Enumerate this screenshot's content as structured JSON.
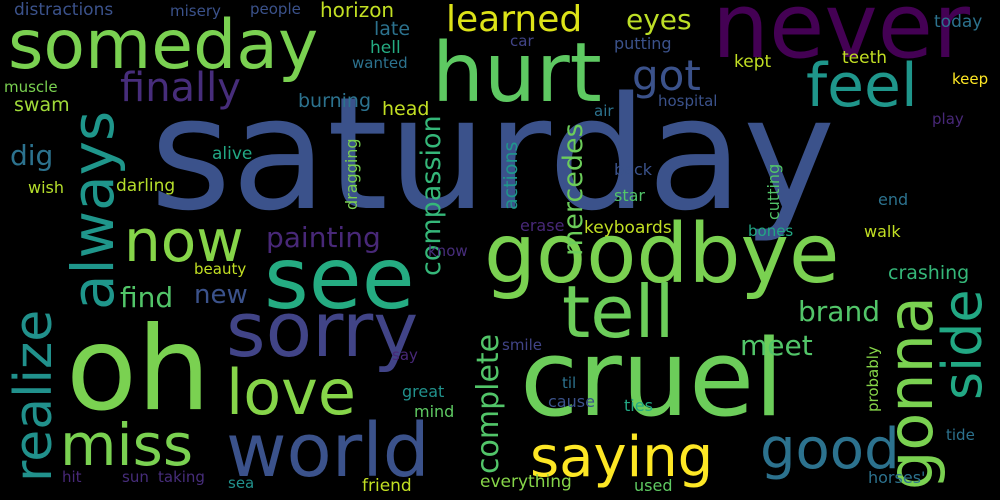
{
  "words": [
    {
      "text": "saturday",
      "color": "#3b528b"
    },
    {
      "text": "never",
      "color": "#440154"
    },
    {
      "text": "someday",
      "color": "#7ad151"
    },
    {
      "text": "hurt",
      "color": "#5ec962"
    },
    {
      "text": "feel",
      "color": "#1f968b"
    },
    {
      "text": "got",
      "color": "#3b528b"
    },
    {
      "text": "learned",
      "color": "#dde318"
    },
    {
      "text": "eyes",
      "color": "#bddf26"
    },
    {
      "text": "finally",
      "color": "#472d7b"
    },
    {
      "text": "always",
      "color": "#1f968b"
    },
    {
      "text": "now",
      "color": "#86d549"
    },
    {
      "text": "realize",
      "color": "#21918c"
    },
    {
      "text": "see",
      "color": "#25ac82"
    },
    {
      "text": "goodbye",
      "color": "#7ad151"
    },
    {
      "text": "sorry",
      "color": "#414487"
    },
    {
      "text": "tell",
      "color": "#6ccd5a"
    },
    {
      "text": "oh",
      "color": "#7ad151"
    },
    {
      "text": "cruel",
      "color": "#6ccd5a"
    },
    {
      "text": "love",
      "color": "#86d549"
    },
    {
      "text": "miss",
      "color": "#7ad151"
    },
    {
      "text": "world",
      "color": "#3b528b"
    },
    {
      "text": "saying",
      "color": "#fde725"
    },
    {
      "text": "good",
      "color": "#2c728e"
    },
    {
      "text": "gonna",
      "color": "#7ad151"
    },
    {
      "text": "side",
      "color": "#22a884"
    },
    {
      "text": "mercedes",
      "color": "#6ccd5a"
    },
    {
      "text": "complete",
      "color": "#52c569"
    },
    {
      "text": "compassion",
      "color": "#35b779"
    },
    {
      "text": "actions",
      "color": "#1f968b"
    },
    {
      "text": "painting",
      "color": "#482878"
    },
    {
      "text": "dig",
      "color": "#2c728e"
    },
    {
      "text": "find",
      "color": "#52c569"
    },
    {
      "text": "new",
      "color": "#3b528b"
    },
    {
      "text": "brand",
      "color": "#52c569"
    },
    {
      "text": "meet",
      "color": "#52c569"
    },
    {
      "text": "crashing",
      "color": "#35b779"
    },
    {
      "text": "keyboards",
      "color": "#c2df23"
    },
    {
      "text": "horizon",
      "color": "#c2df23"
    },
    {
      "text": "burning",
      "color": "#2c728e"
    },
    {
      "text": "head",
      "color": "#c2df23"
    },
    {
      "text": "late",
      "color": "#2c728e"
    },
    {
      "text": "hell",
      "color": "#25ac82"
    },
    {
      "text": "wanted",
      "color": "#2c728e"
    },
    {
      "text": "car",
      "color": "#414487"
    },
    {
      "text": "putting",
      "color": "#3b528b"
    },
    {
      "text": "kept",
      "color": "#c2df23"
    },
    {
      "text": "teeth",
      "color": "#c2df23"
    },
    {
      "text": "today",
      "color": "#2c728e"
    },
    {
      "text": "keep",
      "color": "#fde725"
    },
    {
      "text": "hospital",
      "color": "#3b528b"
    },
    {
      "text": "air",
      "color": "#2c728e"
    },
    {
      "text": "play",
      "color": "#482878"
    },
    {
      "text": "distractions",
      "color": "#3b528b"
    },
    {
      "text": "misery",
      "color": "#3b528b"
    },
    {
      "text": "people",
      "color": "#3b528b"
    },
    {
      "text": "muscle",
      "color": "#7ad151"
    },
    {
      "text": "swam",
      "color": "#a0da39"
    },
    {
      "text": "wish",
      "color": "#b5de2b"
    },
    {
      "text": "darling",
      "color": "#b5de2b"
    },
    {
      "text": "alive",
      "color": "#22a884"
    },
    {
      "text": "dragging",
      "color": "#7ad151"
    },
    {
      "text": "back",
      "color": "#3b528b"
    },
    {
      "text": "star",
      "color": "#52c569"
    },
    {
      "text": "cutting",
      "color": "#52c569"
    },
    {
      "text": "end",
      "color": "#2c728e"
    },
    {
      "text": "bones",
      "color": "#22a884"
    },
    {
      "text": "walk",
      "color": "#c2df23"
    },
    {
      "text": "erase",
      "color": "#482878"
    },
    {
      "text": "know",
      "color": "#472d7b"
    },
    {
      "text": "beauty",
      "color": "#c2df23"
    },
    {
      "text": "smile",
      "color": "#414487"
    },
    {
      "text": "say",
      "color": "#482878"
    },
    {
      "text": "great",
      "color": "#21918c"
    },
    {
      "text": "mind",
      "color": "#5ec962"
    },
    {
      "text": "til",
      "color": "#2c728e"
    },
    {
      "text": "cause",
      "color": "#3b528b"
    },
    {
      "text": "ties",
      "color": "#22a884"
    },
    {
      "text": "probably",
      "color": "#86d549"
    },
    {
      "text": "tide",
      "color": "#2c728e"
    },
    {
      "text": "horses'",
      "color": "#2c728e"
    },
    {
      "text": "hit",
      "color": "#482878"
    },
    {
      "text": "sun",
      "color": "#472d7b"
    },
    {
      "text": "taking",
      "color": "#472d7b"
    },
    {
      "text": "sea",
      "color": "#21918c"
    },
    {
      "text": "friend",
      "color": "#c2df23"
    },
    {
      "text": "everything",
      "color": "#86d549"
    },
    {
      "text": "used",
      "color": "#5ec962"
    }
  ]
}
